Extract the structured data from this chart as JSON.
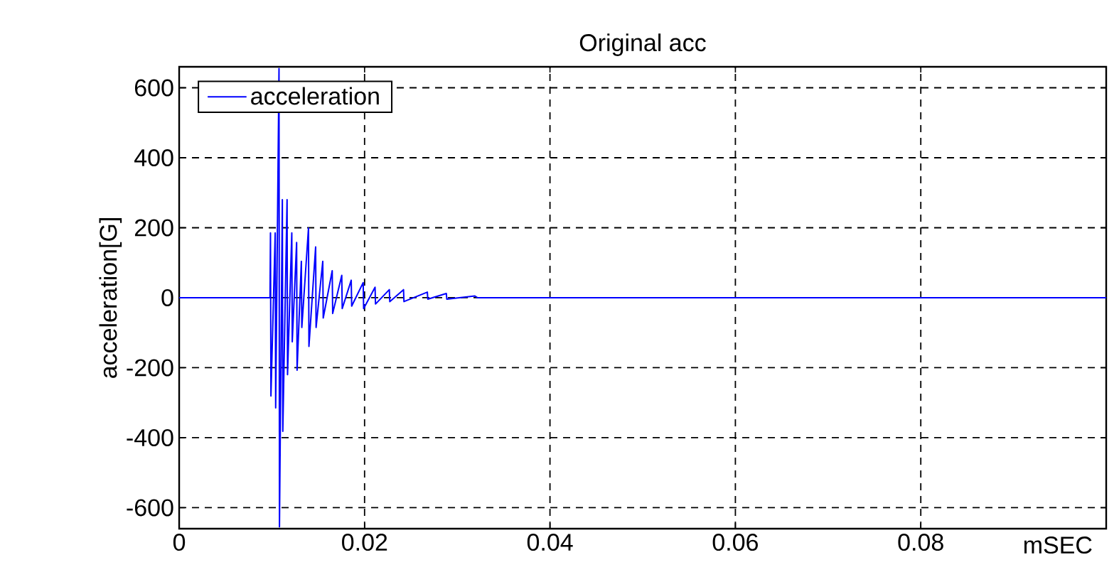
{
  "chart_data": {
    "type": "line",
    "title": "Original acc",
    "xlabel": "mSEC",
    "ylabel": "acceleration[G]",
    "xlim": [
      0,
      0.1
    ],
    "ylim": [
      -660,
      660
    ],
    "xticks": [
      0,
      0.02,
      0.04,
      0.06,
      0.08
    ],
    "yticks": [
      -600,
      -400,
      -200,
      0,
      200,
      400,
      600
    ],
    "grid": true,
    "legend": "top left",
    "marker": "none",
    "line_style": "solid",
    "series": [
      {
        "name": "acceleration",
        "color": "#0000ff",
        "x": [
          0,
          0.0098,
          0.00985,
          0.0099,
          0.01036,
          0.01041,
          0.01077,
          0.01082,
          0.01113,
          0.01118,
          0.01164,
          0.01169,
          0.01215,
          0.0122,
          0.01267,
          0.01272,
          0.01318,
          0.01323,
          0.01395,
          0.014,
          0.01472,
          0.01477,
          0.01549,
          0.01554,
          0.01651,
          0.01656,
          0.01754,
          0.01759,
          0.01856,
          0.01861,
          0.01985,
          0.0199,
          0.02113,
          0.02118,
          0.02267,
          0.02272,
          0.0242,
          0.02425,
          0.02677,
          0.02682,
          0.02882,
          0.02887,
          0.0319,
          0.0322,
          0.1
        ],
        "values": [
          0,
          0,
          185,
          -281,
          185,
          -315,
          655,
          -655,
          280,
          -382,
          280,
          -220,
          185,
          -126,
          158,
          -207,
          104,
          -85,
          199,
          -139,
          145,
          -85,
          104,
          -58,
          77,
          -45,
          64,
          -31,
          50,
          -24,
          43,
          -31,
          30,
          -18,
          23,
          -11,
          23,
          -11,
          16,
          -4,
          12,
          -4,
          5,
          0,
          0
        ]
      }
    ]
  }
}
